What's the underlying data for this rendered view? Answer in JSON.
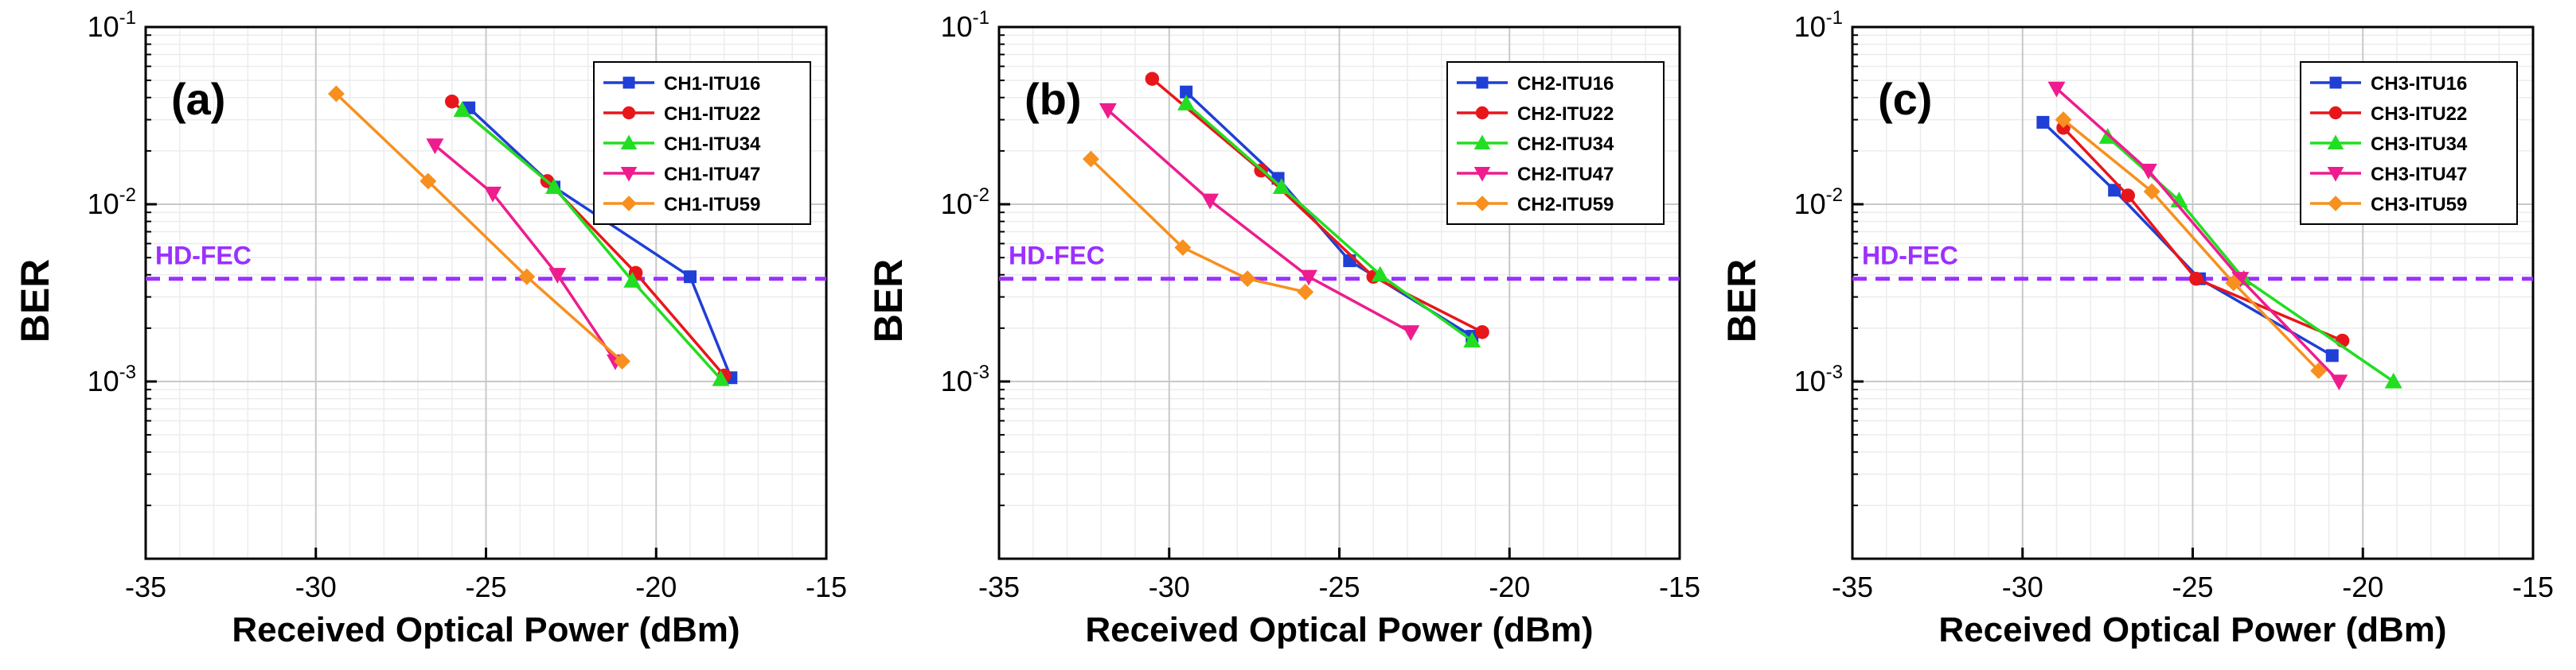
{
  "colors": {
    "ITU16": "#1f3fd6",
    "ITU22": "#e8161b",
    "ITU34": "#22dd22",
    "ITU47": "#ee1c8e",
    "ITU59": "#f7901e",
    "hd_fec": "#9b30ff"
  },
  "chart_data": [
    {
      "type": "line",
      "panel_label": "(a)",
      "xlabel": "Received Optical  Power (dBm)",
      "ylabel": "BER",
      "yscale": "log",
      "xlim": [
        -35,
        -15
      ],
      "ylim": [
        0.0001,
        0.1
      ],
      "xticks": [
        -35,
        -30,
        -25,
        -20,
        -15
      ],
      "grid": true,
      "legend_position": "top-right",
      "reference_line": {
        "label": "HD-FEC",
        "y": 0.0038
      },
      "series": [
        {
          "name": "CH1-ITU16",
          "key": "ITU16",
          "marker": "square",
          "x": [
            -25.5,
            -23,
            -19,
            -17.8
          ],
          "y": [
            0.035,
            0.0125,
            0.0039,
            0.00105
          ]
        },
        {
          "name": "CH1-ITU22",
          "key": "ITU22",
          "marker": "circle",
          "x": [
            -26,
            -23.2,
            -20.6,
            -18
          ],
          "y": [
            0.038,
            0.0135,
            0.0041,
            0.00108
          ]
        },
        {
          "name": "CH1-ITU34",
          "key": "ITU34",
          "marker": "triangle-up",
          "x": [
            -25.7,
            -23,
            -20.7,
            -18.1
          ],
          "y": [
            0.034,
            0.0125,
            0.0037,
            0.00103
          ]
        },
        {
          "name": "CH1-ITU47",
          "key": "ITU47",
          "marker": "triangle-down",
          "x": [
            -26.5,
            -24.8,
            -22.9,
            -21.2
          ],
          "y": [
            0.0215,
            0.0115,
            0.004,
            0.0013
          ]
        },
        {
          "name": "CH1-ITU59",
          "key": "ITU59",
          "marker": "diamond",
          "x": [
            -29.4,
            -26.7,
            -23.8,
            -21
          ],
          "y": [
            0.042,
            0.0135,
            0.0039,
            0.0013
          ]
        }
      ]
    },
    {
      "type": "line",
      "panel_label": "(b)",
      "xlabel": "Received Optical  Power (dBm)",
      "ylabel": "BER",
      "yscale": "log",
      "xlim": [
        -35,
        -15
      ],
      "ylim": [
        0.0001,
        0.1
      ],
      "xticks": [
        -35,
        -30,
        -25,
        -20,
        -15
      ],
      "grid": true,
      "legend_position": "top-right",
      "reference_line": {
        "label": "HD-FEC",
        "y": 0.0038
      },
      "series": [
        {
          "name": "CH2-ITU16",
          "key": "ITU16",
          "marker": "square",
          "x": [
            -29.5,
            -26.8,
            -24.7,
            -21.1
          ],
          "y": [
            0.043,
            0.014,
            0.0048,
            0.0018
          ]
        },
        {
          "name": "CH2-ITU22",
          "key": "ITU22",
          "marker": "circle",
          "x": [
            -30.5,
            -27.3,
            -24,
            -20.8
          ],
          "y": [
            0.051,
            0.0155,
            0.0039,
            0.0019
          ]
        },
        {
          "name": "CH2-ITU34",
          "key": "ITU34",
          "marker": "triangle-up",
          "x": [
            -29.5,
            -26.7,
            -23.8,
            -21.1
          ],
          "y": [
            0.037,
            0.0125,
            0.004,
            0.0017
          ]
        },
        {
          "name": "CH2-ITU47",
          "key": "ITU47",
          "marker": "triangle-down",
          "x": [
            -31.8,
            -28.8,
            -25.9,
            -22.9
          ],
          "y": [
            0.034,
            0.0105,
            0.0039,
            0.0019
          ]
        },
        {
          "name": "CH2-ITU59",
          "key": "ITU59",
          "marker": "diamond",
          "x": [
            -32.3,
            -29.6,
            -27.7,
            -26
          ],
          "y": [
            0.018,
            0.0057,
            0.0038,
            0.0032
          ]
        }
      ]
    },
    {
      "type": "line",
      "panel_label": "(c)",
      "xlabel": "Received Optical  Power (dBm)",
      "ylabel": "BER",
      "yscale": "log",
      "xlim": [
        -35,
        -15
      ],
      "ylim": [
        0.0001,
        0.1
      ],
      "xticks": [
        -35,
        -30,
        -25,
        -20,
        -15
      ],
      "grid": true,
      "legend_position": "top-right",
      "reference_line": {
        "label": "HD-FEC",
        "y": 0.0038
      },
      "series": [
        {
          "name": "CH3-ITU16",
          "key": "ITU16",
          "marker": "square",
          "x": [
            -29.4,
            -27.3,
            -24.8,
            -20.9
          ],
          "y": [
            0.029,
            0.012,
            0.0038,
            0.0014
          ]
        },
        {
          "name": "CH3-ITU22",
          "key": "ITU22",
          "marker": "circle",
          "x": [
            -28.8,
            -26.9,
            -24.9,
            -20.6
          ],
          "y": [
            0.027,
            0.0112,
            0.0038,
            0.0017
          ]
        },
        {
          "name": "CH3-ITU34",
          "key": "ITU34",
          "marker": "triangle-up",
          "x": [
            -27.5,
            -25.4,
            -23.5,
            -19.1
          ],
          "y": [
            0.024,
            0.0105,
            0.0038,
            0.001
          ]
        },
        {
          "name": "CH3-ITU47",
          "key": "ITU47",
          "marker": "triangle-down",
          "x": [
            -29,
            -26.3,
            -23.6,
            -20.7
          ],
          "y": [
            0.045,
            0.0155,
            0.0038,
            0.001
          ]
        },
        {
          "name": "CH3-ITU59",
          "key": "ITU59",
          "marker": "diamond",
          "x": [
            -28.8,
            -26.2,
            -23.8,
            -21.3
          ],
          "y": [
            0.03,
            0.0118,
            0.0036,
            0.00115
          ]
        }
      ]
    }
  ]
}
